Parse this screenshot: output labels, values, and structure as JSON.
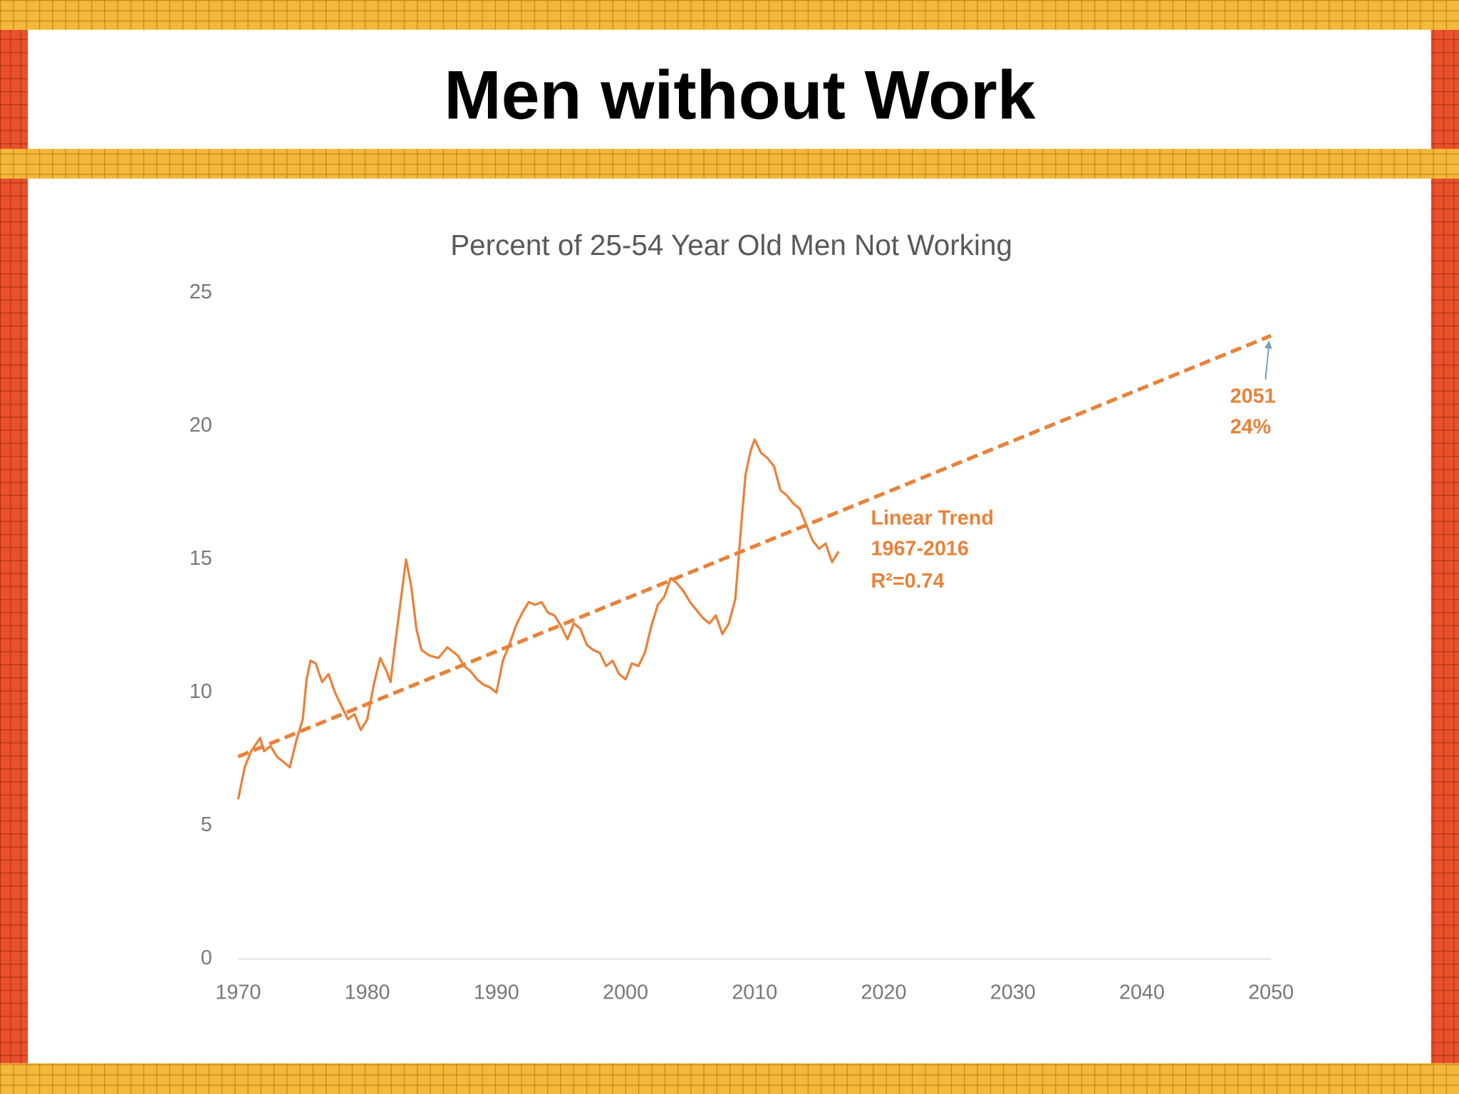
{
  "slide_title": "Men without Work",
  "chart_data": {
    "type": "line",
    "title": "Percent of 25-54 Year Old Men Not Working",
    "xlim": [
      1970,
      2050
    ],
    "xticks": [
      1970,
      1980,
      1990,
      2000,
      2010,
      2020,
      2030,
      2040,
      2050
    ],
    "ylim": [
      0,
      25
    ],
    "yticks": [
      0,
      5,
      10,
      15,
      20,
      25
    ],
    "grid": false,
    "series": [
      {
        "color": "#e8823a",
        "style": "solid",
        "x": [
          1970.0,
          1970.5,
          1971.0,
          1971.7,
          1972.0,
          1972.5,
          1973.0,
          1973.5,
          1974.0,
          1974.5,
          1975.0,
          1975.3,
          1975.6,
          1976.0,
          1976.5,
          1977.0,
          1977.5,
          1978.0,
          1978.5,
          1979.0,
          1979.5,
          1980.0,
          1980.5,
          1981.0,
          1981.5,
          1981.8,
          1982.2,
          1982.6,
          1983.0,
          1983.4,
          1983.8,
          1984.2,
          1984.8,
          1985.5,
          1986.2,
          1987.0,
          1987.5,
          1988.0,
          1988.5,
          1989.0,
          1989.5,
          1990.0,
          1990.5,
          1991.0,
          1991.5,
          1992.0,
          1992.5,
          1993.0,
          1993.5,
          1994.0,
          1994.5,
          1995.0,
          1995.5,
          1996.0,
          1996.5,
          1997.0,
          1997.5,
          1998.0,
          1998.5,
          1999.0,
          1999.5,
          2000.0,
          2000.5,
          2001.0,
          2001.5,
          2002.0,
          2002.5,
          2003.0,
          2003.5,
          2004.0,
          2004.5,
          2005.0,
          2005.5,
          2006.0,
          2006.5,
          2007.0,
          2007.5,
          2008.0,
          2008.5,
          2009.0,
          2009.3,
          2009.7,
          2010.0,
          2010.5,
          2011.0,
          2011.5,
          2012.0,
          2012.5,
          2013.0,
          2013.5,
          2014.0,
          2014.5,
          2015.0,
          2015.5,
          2016.0,
          2016.5
        ],
        "values": [
          6.0,
          7.2,
          7.8,
          8.3,
          7.8,
          8.0,
          7.6,
          7.4,
          7.2,
          8.2,
          9.0,
          10.5,
          11.2,
          11.1,
          10.4,
          10.7,
          10.0,
          9.5,
          9.0,
          9.2,
          8.6,
          9.0,
          10.3,
          11.3,
          10.8,
          10.4,
          12.0,
          13.5,
          15.0,
          14.0,
          12.4,
          11.6,
          11.4,
          11.3,
          11.7,
          11.4,
          11.0,
          10.8,
          10.5,
          10.3,
          10.2,
          10.0,
          11.2,
          11.8,
          12.5,
          13.0,
          13.4,
          13.3,
          13.4,
          13.0,
          12.9,
          12.5,
          12.0,
          12.6,
          12.4,
          11.8,
          11.6,
          11.5,
          11.0,
          11.2,
          10.7,
          10.5,
          11.1,
          11.0,
          11.5,
          12.5,
          13.3,
          13.6,
          14.3,
          14.1,
          13.8,
          13.4,
          13.1,
          12.8,
          12.6,
          12.9,
          12.2,
          12.6,
          13.5,
          16.5,
          18.2,
          19.1,
          19.5,
          19.0,
          18.8,
          18.5,
          17.6,
          17.4,
          17.1,
          16.9,
          16.3,
          15.7,
          15.4,
          15.6,
          14.9,
          15.3
        ]
      },
      {
        "color": "#e8823a",
        "style": "dashed",
        "x": [
          1970,
          2050
        ],
        "values": [
          7.6,
          23.4
        ]
      }
    ],
    "annotations": [
      {
        "text": "Linear Trend",
        "color": "#e8823a"
      },
      {
        "text": "1967-2016",
        "color": "#e8823a"
      },
      {
        "text": "R²=0.74",
        "color": "#e8823a"
      },
      {
        "text": "2051",
        "color": "#e8823a"
      },
      {
        "text": "24%",
        "color": "#e8823a"
      }
    ]
  }
}
